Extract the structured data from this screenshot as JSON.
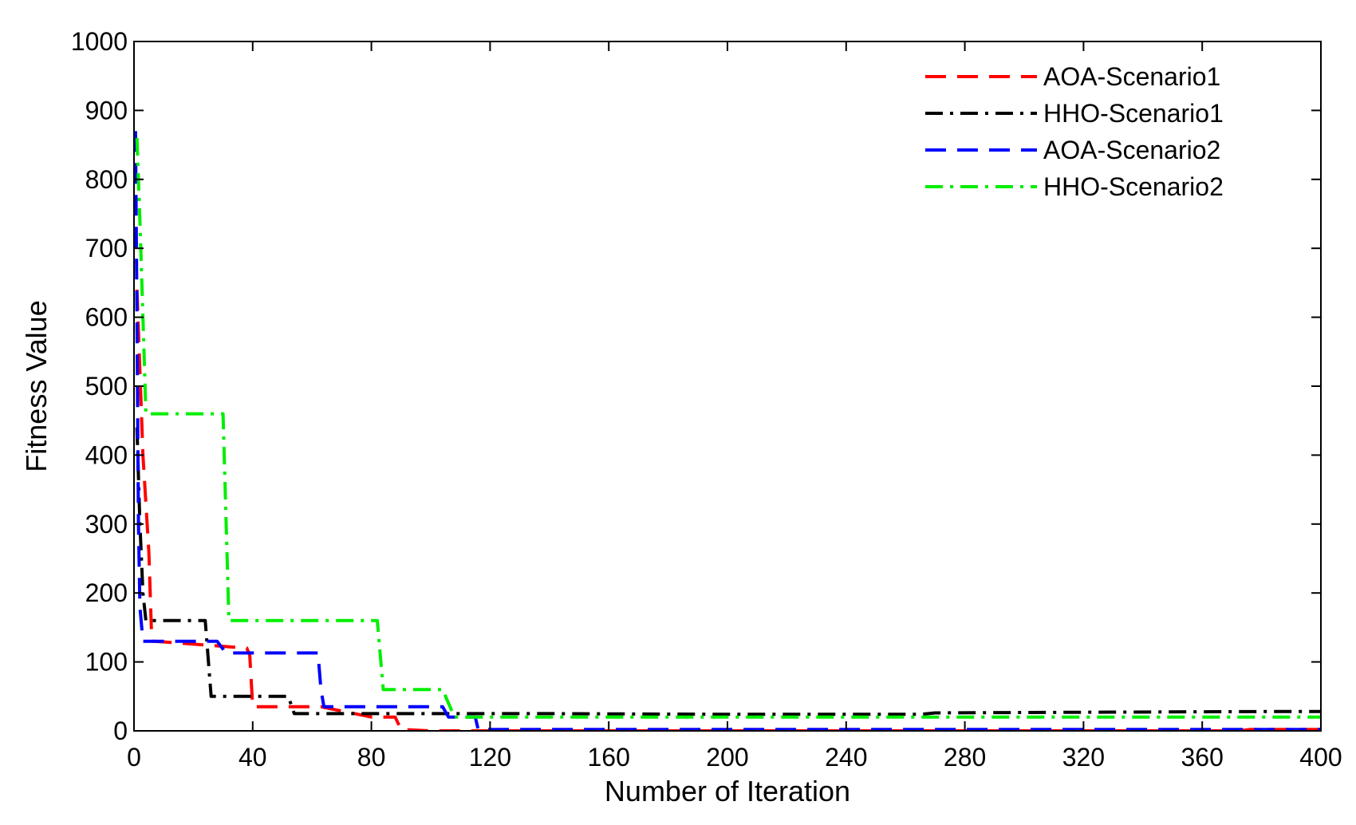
{
  "chart_data": {
    "type": "line",
    "title": "",
    "xlabel": "Number of Iteration",
    "ylabel": "Fitness Value",
    "xlim": [
      0,
      400
    ],
    "ylim": [
      0,
      1000
    ],
    "xticks": [
      0,
      40,
      80,
      120,
      160,
      200,
      240,
      280,
      320,
      360,
      400
    ],
    "yticks": [
      0,
      100,
      200,
      300,
      400,
      500,
      600,
      700,
      800,
      900,
      1000
    ],
    "grid": false,
    "legend_position": "top-right",
    "series": [
      {
        "name": "AOA-Scenario1",
        "color": "#ff0000",
        "style": "dashed",
        "x": [
          1,
          3,
          5,
          6,
          7,
          38,
          39,
          40,
          62,
          63,
          80,
          88,
          90,
          100,
          372,
          376,
          400
        ],
        "y": [
          640,
          400,
          260,
          130,
          130,
          120,
          110,
          35,
          35,
          35,
          20,
          20,
          2,
          0,
          0,
          2,
          2
        ]
      },
      {
        "name": "HHO-Scenario1",
        "color": "#000000",
        "style": "dashdot",
        "x": [
          1,
          2,
          3,
          4,
          24,
          26,
          28,
          52,
          54,
          107,
          120,
          140,
          200,
          265,
          270,
          320,
          380,
          400
        ],
        "y": [
          440,
          300,
          200,
          160,
          160,
          50,
          50,
          50,
          25,
          25,
          25,
          25,
          24,
          24,
          26,
          27,
          28,
          28
        ]
      },
      {
        "name": "AOA-Scenario2",
        "color": "#0000ff",
        "style": "dashed",
        "x": [
          0.5,
          1,
          1.5,
          2,
          3,
          28,
          31,
          62,
          63,
          64,
          104,
          106,
          110,
          115,
          116,
          400
        ],
        "y": [
          870,
          600,
          300,
          180,
          130,
          130,
          113,
          113,
          60,
          35,
          35,
          20,
          20,
          20,
          2,
          2
        ]
      },
      {
        "name": "HHO-Scenario2",
        "color": "#00ee00",
        "style": "dashdot",
        "x": [
          1,
          2,
          3,
          4,
          30,
          32,
          82,
          84,
          104,
          106,
          108,
          400
        ],
        "y": [
          860,
          740,
          600,
          460,
          460,
          160,
          160,
          60,
          60,
          40,
          20,
          20
        ]
      }
    ]
  }
}
